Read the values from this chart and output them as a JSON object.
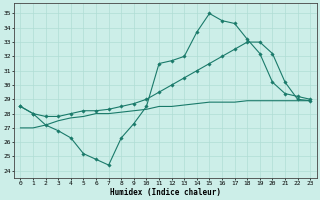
{
  "xlabel": "Humidex (Indice chaleur)",
  "background_color": "#cceee8",
  "grid_color": "#b0ddd5",
  "line_color": "#1a7a6a",
  "xlim": [
    -0.5,
    23.5
  ],
  "ylim": [
    23.5,
    35.7
  ],
  "yticks": [
    24,
    25,
    26,
    27,
    28,
    29,
    30,
    31,
    32,
    33,
    34,
    35
  ],
  "xticks": [
    0,
    1,
    2,
    3,
    4,
    5,
    6,
    7,
    8,
    9,
    10,
    11,
    12,
    13,
    14,
    15,
    16,
    17,
    18,
    19,
    20,
    21,
    22,
    23
  ],
  "line1_x": [
    0,
    1,
    2,
    3,
    4,
    5,
    6,
    7,
    8,
    9,
    10,
    11,
    12,
    13,
    14,
    15,
    16,
    17,
    18,
    19,
    20,
    21,
    22,
    23
  ],
  "line1_y": [
    28.5,
    28.0,
    27.2,
    26.8,
    26.3,
    25.2,
    24.8,
    24.4,
    26.3,
    27.3,
    28.5,
    31.5,
    31.7,
    32.0,
    33.7,
    35.0,
    34.5,
    34.3,
    33.2,
    32.2,
    30.2,
    29.4,
    29.2,
    29.0
  ],
  "line2_x": [
    0,
    1,
    2,
    3,
    4,
    5,
    6,
    7,
    8,
    9,
    10,
    11,
    12,
    13,
    14,
    15,
    16,
    17,
    18,
    19,
    20,
    21,
    22,
    23
  ],
  "line2_y": [
    28.5,
    28.0,
    27.8,
    27.8,
    28.0,
    28.2,
    28.2,
    28.3,
    28.5,
    28.7,
    29.0,
    29.5,
    30.0,
    30.5,
    31.0,
    31.5,
    32.0,
    32.5,
    33.0,
    33.0,
    32.2,
    30.2,
    29.0,
    28.9
  ],
  "line3_x": [
    0,
    1,
    2,
    3,
    4,
    5,
    6,
    7,
    8,
    9,
    10,
    11,
    12,
    13,
    14,
    15,
    16,
    17,
    18,
    19,
    20,
    21,
    22,
    23
  ],
  "line3_y": [
    27.0,
    27.0,
    27.2,
    27.5,
    27.7,
    27.8,
    28.0,
    28.0,
    28.1,
    28.2,
    28.3,
    28.5,
    28.5,
    28.6,
    28.7,
    28.8,
    28.8,
    28.8,
    28.9,
    28.9,
    28.9,
    28.9,
    28.9,
    28.9
  ],
  "marker_size": 1.8,
  "linewidth": 0.8,
  "tick_fontsize": 4.5,
  "xlabel_fontsize": 5.5
}
